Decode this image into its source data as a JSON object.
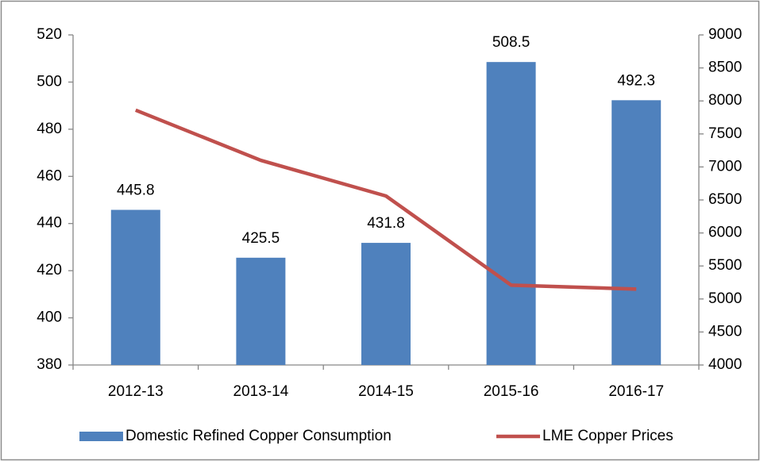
{
  "chart_data": {
    "type": "bar",
    "categories": [
      "2012-13",
      "2013-14",
      "2014-15",
      "2015-16",
      "2016-17"
    ],
    "series": [
      {
        "name": "Domestic Refined Copper Consumption",
        "type": "bar",
        "color": "#4f81bd",
        "values": [
          445.8,
          425.5,
          431.8,
          508.5,
          492.3
        ]
      },
      {
        "name": "LME Copper Prices",
        "type": "line",
        "axis": "y2",
        "color": "#c0504d",
        "values": [
          7860,
          7100,
          6560,
          5210,
          5150
        ]
      }
    ],
    "ylim": [
      380,
      520
    ],
    "yticks": [
      380,
      400,
      420,
      440,
      460,
      480,
      500,
      520
    ],
    "y2lim": [
      4000,
      9000
    ],
    "y2ticks": [
      4000,
      4500,
      5000,
      5500,
      6000,
      6500,
      7000,
      7500,
      8000,
      8500,
      9000
    ],
    "legend": "bottom"
  }
}
